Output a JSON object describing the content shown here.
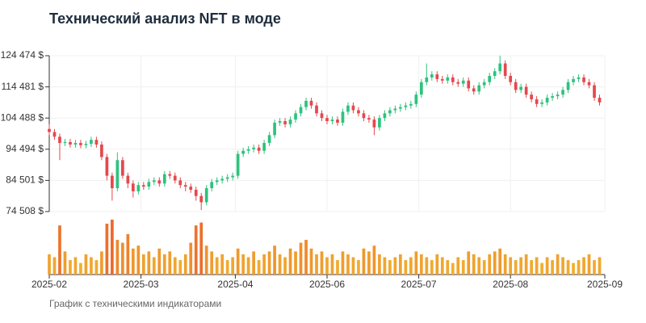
{
  "chart_data": {
    "type": "candlestick",
    "title": "Технический анализ NFT в моде",
    "subtitle": "График с техническими индикаторами",
    "x": [
      "2025-02-01",
      "2025-02-03",
      "2025-02-05",
      "2025-02-07",
      "2025-02-09",
      "2025-02-11",
      "2025-02-13",
      "2025-02-15",
      "2025-02-17",
      "2025-02-19",
      "2025-02-21",
      "2025-02-23",
      "2025-02-25",
      "2025-02-27",
      "2025-03-01",
      "2025-03-03",
      "2025-03-05",
      "2025-03-07",
      "2025-03-09",
      "2025-03-11",
      "2025-03-13",
      "2025-03-15",
      "2025-03-17",
      "2025-03-19",
      "2025-03-21",
      "2025-03-23",
      "2025-03-25",
      "2025-03-27",
      "2025-03-29",
      "2025-03-31",
      "2025-04-02",
      "2025-04-04",
      "2025-04-06",
      "2025-04-08",
      "2025-04-10",
      "2025-04-12",
      "2025-04-14",
      "2025-04-16",
      "2025-04-18",
      "2025-04-20",
      "2025-04-22",
      "2025-04-24",
      "2025-04-26",
      "2025-04-28",
      "2025-04-30",
      "2025-05-02",
      "2025-05-04",
      "2025-05-06",
      "2025-05-08",
      "2025-05-10",
      "2025-05-12",
      "2025-05-14",
      "2025-05-16",
      "2025-05-18",
      "2025-05-20",
      "2025-05-22",
      "2025-05-24",
      "2025-05-26",
      "2025-05-28",
      "2025-05-30",
      "2025-06-01",
      "2025-06-03",
      "2025-06-05",
      "2025-06-07",
      "2025-06-09",
      "2025-06-11",
      "2025-06-13",
      "2025-06-15",
      "2025-06-17",
      "2025-06-19",
      "2025-06-21",
      "2025-06-23",
      "2025-06-25",
      "2025-06-27",
      "2025-06-29",
      "2025-07-01",
      "2025-07-03",
      "2025-07-05",
      "2025-07-07",
      "2025-07-09",
      "2025-07-11",
      "2025-07-13",
      "2025-07-15",
      "2025-07-17",
      "2025-07-19",
      "2025-07-21",
      "2025-07-23",
      "2025-07-25",
      "2025-07-27",
      "2025-07-29",
      "2025-07-31",
      "2025-08-02",
      "2025-08-04",
      "2025-08-06",
      "2025-08-08",
      "2025-08-10",
      "2025-08-12",
      "2025-08-14",
      "2025-08-16",
      "2025-08-18",
      "2025-08-20",
      "2025-08-22",
      "2025-08-24",
      "2025-08-26",
      "2025-08-28",
      "2025-08-30"
    ],
    "open": [
      101000,
      100000,
      98500,
      96500,
      96800,
      96000,
      96500,
      95800,
      96200,
      97500,
      96000,
      92000,
      86000,
      82000,
      91000,
      86000,
      83500,
      81000,
      83000,
      82500,
      84000,
      84500,
      83500,
      86500,
      86000,
      84500,
      83000,
      82500,
      81500,
      79500,
      77500,
      82000,
      84000,
      84500,
      85000,
      85500,
      86000,
      93000,
      94000,
      94500,
      95000,
      94000,
      96500,
      99000,
      103000,
      103500,
      102500,
      104000,
      106000,
      108000,
      110000,
      108500,
      106000,
      104500,
      103500,
      104000,
      103000,
      106500,
      108500,
      107000,
      106000,
      104500,
      104000,
      101500,
      104500,
      106000,
      107000,
      107500,
      108000,
      108500,
      109000,
      112000,
      116000,
      117500,
      118500,
      117000,
      116500,
      117500,
      116000,
      115500,
      116500,
      114000,
      113000,
      115000,
      116000,
      118000,
      119500,
      122000,
      118000,
      116000,
      113500,
      114500,
      112000,
      110500,
      109000,
      109500,
      111000,
      111500,
      112000,
      113500,
      116000,
      117000,
      117500,
      116000,
      115000,
      111000
    ],
    "high": [
      102500,
      101000,
      99500,
      97800,
      97800,
      97500,
      97500,
      97200,
      98500,
      98500,
      97000,
      93000,
      87000,
      93500,
      92000,
      87000,
      84500,
      84000,
      84000,
      85000,
      85500,
      85500,
      87500,
      87500,
      87000,
      85500,
      84000,
      83500,
      82500,
      80500,
      83000,
      85000,
      85500,
      86000,
      86500,
      87000,
      94000,
      95000,
      95500,
      96000,
      96000,
      97500,
      100000,
      104000,
      104500,
      104500,
      105000,
      107000,
      109000,
      111000,
      111000,
      109500,
      107000,
      105500,
      105000,
      105000,
      107500,
      109500,
      109500,
      108000,
      107000,
      105500,
      105000,
      105500,
      107000,
      108000,
      108500,
      109000,
      109500,
      110000,
      113000,
      117000,
      122000,
      119500,
      119500,
      118000,
      118500,
      118500,
      117000,
      117500,
      117500,
      115000,
      116000,
      117000,
      119000,
      120500,
      124500,
      123000,
      119000,
      117000,
      115500,
      115500,
      113000,
      111500,
      110500,
      112000,
      112500,
      113000,
      114500,
      117000,
      118000,
      118500,
      118500,
      117000,
      116000,
      112000
    ],
    "low": [
      99000,
      97500,
      91000,
      95500,
      95000,
      95000,
      94800,
      94800,
      95200,
      95000,
      91000,
      84500,
      78000,
      81000,
      85000,
      82000,
      79000,
      80000,
      81500,
      81500,
      83000,
      82500,
      82500,
      85000,
      83500,
      82000,
      81000,
      80500,
      78000,
      75000,
      76500,
      81000,
      83000,
      83500,
      84000,
      84500,
      85000,
      92000,
      93000,
      93500,
      93000,
      93000,
      95500,
      98000,
      102000,
      101500,
      101500,
      103000,
      105000,
      107000,
      107500,
      105000,
      103500,
      102500,
      102500,
      102000,
      102000,
      105500,
      106000,
      105000,
      103500,
      103000,
      99000,
      100500,
      103500,
      105000,
      106000,
      106500,
      107000,
      107500,
      108000,
      111000,
      115000,
      116500,
      116000,
      115500,
      115500,
      115000,
      114500,
      114500,
      113000,
      112000,
      112000,
      114000,
      115000,
      117000,
      118500,
      117000,
      115000,
      112500,
      112500,
      111000,
      109500,
      108000,
      108000,
      108500,
      110000,
      110500,
      111000,
      112500,
      115000,
      116000,
      115000,
      114000,
      110000,
      108500
    ],
    "close": [
      100000,
      98500,
      96500,
      96800,
      96000,
      96500,
      95800,
      96200,
      97500,
      96000,
      92000,
      86000,
      82000,
      91000,
      86000,
      83500,
      81000,
      83000,
      82500,
      84000,
      84500,
      83500,
      86500,
      86000,
      84500,
      83000,
      82500,
      81500,
      79500,
      77500,
      82000,
      84000,
      84500,
      85000,
      85500,
      86000,
      93000,
      94000,
      94500,
      95000,
      94000,
      96500,
      99000,
      103000,
      103500,
      102500,
      104000,
      106000,
      108000,
      110000,
      108500,
      106000,
      104500,
      103500,
      104000,
      103000,
      106500,
      108500,
      107000,
      106000,
      104500,
      104000,
      101500,
      104500,
      106000,
      107000,
      107500,
      108000,
      108500,
      109000,
      112000,
      116000,
      117500,
      118500,
      117000,
      116500,
      117500,
      116000,
      115500,
      116500,
      114000,
      113000,
      115000,
      116000,
      118000,
      119500,
      122000,
      118000,
      116000,
      113500,
      114500,
      112000,
      110500,
      109000,
      109500,
      111000,
      111500,
      112000,
      113500,
      116000,
      117000,
      117500,
      116000,
      115000,
      111000,
      109500
    ],
    "volume": [
      35,
      30,
      85,
      40,
      25,
      30,
      20,
      35,
      30,
      25,
      40,
      88,
      95,
      60,
      55,
      70,
      45,
      50,
      35,
      40,
      30,
      45,
      35,
      40,
      30,
      25,
      35,
      55,
      85,
      90,
      50,
      40,
      30,
      35,
      25,
      30,
      45,
      35,
      30,
      40,
      25,
      35,
      40,
      50,
      35,
      30,
      45,
      40,
      55,
      60,
      45,
      35,
      40,
      30,
      35,
      25,
      40,
      35,
      30,
      25,
      45,
      40,
      50,
      35,
      30,
      25,
      30,
      35,
      25,
      30,
      40,
      35,
      30,
      25,
      35,
      30,
      25,
      20,
      30,
      25,
      40,
      35,
      30,
      25,
      35,
      40,
      45,
      35,
      30,
      25,
      30,
      35,
      25,
      30,
      20,
      30,
      25,
      35,
      30,
      25,
      20,
      25,
      30,
      35,
      25,
      30
    ],
    "up_color": "#2ec27e",
    "down_color": "#e5484d",
    "volume_color_low": "#f2c230",
    "volume_color_high": "#ec6a2c",
    "xlim": [
      "2025-02-01",
      "2025-09-01"
    ],
    "xticks": [
      {
        "value": "2025-02-01",
        "label": "2025-02"
      },
      {
        "value": "2025-03-08",
        "label": "2025-03"
      },
      {
        "value": "2025-04-13",
        "label": "2025-04"
      },
      {
        "value": "2025-05-18",
        "label": "2025-06"
      },
      {
        "value": "2025-06-22",
        "label": "2025-07"
      },
      {
        "value": "2025-07-27",
        "label": "2025-08"
      },
      {
        "value": "2025-09-01",
        "label": "2025-09"
      }
    ],
    "ylim": [
      74508,
      124474
    ],
    "yticks": [
      {
        "value": 74508,
        "label": "74 508 $"
      },
      {
        "value": 84501,
        "label": "84 501 $"
      },
      {
        "value": 94494,
        "label": "94 494 $"
      },
      {
        "value": 104488,
        "label": "104 488 $"
      },
      {
        "value": 114481,
        "label": "114 481 $"
      },
      {
        "value": 124474,
        "label": "124 474 $"
      }
    ],
    "grid": true
  }
}
